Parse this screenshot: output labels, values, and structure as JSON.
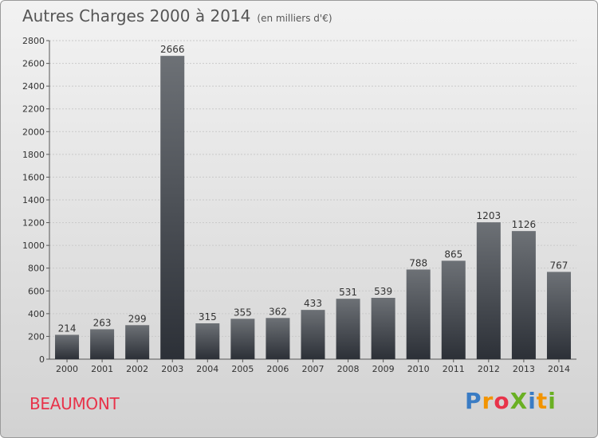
{
  "header": {
    "title": "Autres Charges 2000 à 2014",
    "unit": "(en milliers d'€)"
  },
  "footer": {
    "commune": "BEAUMONT",
    "brand": "ProXiti",
    "brand_colors": [
      "#3a7cc4",
      "#f29400",
      "#e8334a",
      "#6ab023",
      "#3a7cc4",
      "#f29400",
      "#6ab023"
    ]
  },
  "colors": {
    "bar_top": "#6d7176",
    "bar_bottom": "#2c3037",
    "commune": "#e8334a"
  },
  "chart_data": {
    "type": "bar",
    "title": "Autres Charges 2000 à 2014",
    "subtitle": "(en milliers d'€)",
    "categories": [
      "2000",
      "2001",
      "2002",
      "2003",
      "2004",
      "2005",
      "2006",
      "2007",
      "2008",
      "2009",
      "2010",
      "2011",
      "2012",
      "2013",
      "2014"
    ],
    "values": [
      214,
      263,
      299,
      2666,
      315,
      355,
      362,
      433,
      531,
      539,
      788,
      865,
      1203,
      1126,
      767
    ],
    "yticks": [
      0,
      200,
      400,
      600,
      800,
      1000,
      1200,
      1400,
      1600,
      1800,
      2000,
      2200,
      2400,
      2600,
      2800
    ],
    "ylim": [
      0,
      2800
    ],
    "grid": true,
    "data_labels": true,
    "legend": "none"
  }
}
